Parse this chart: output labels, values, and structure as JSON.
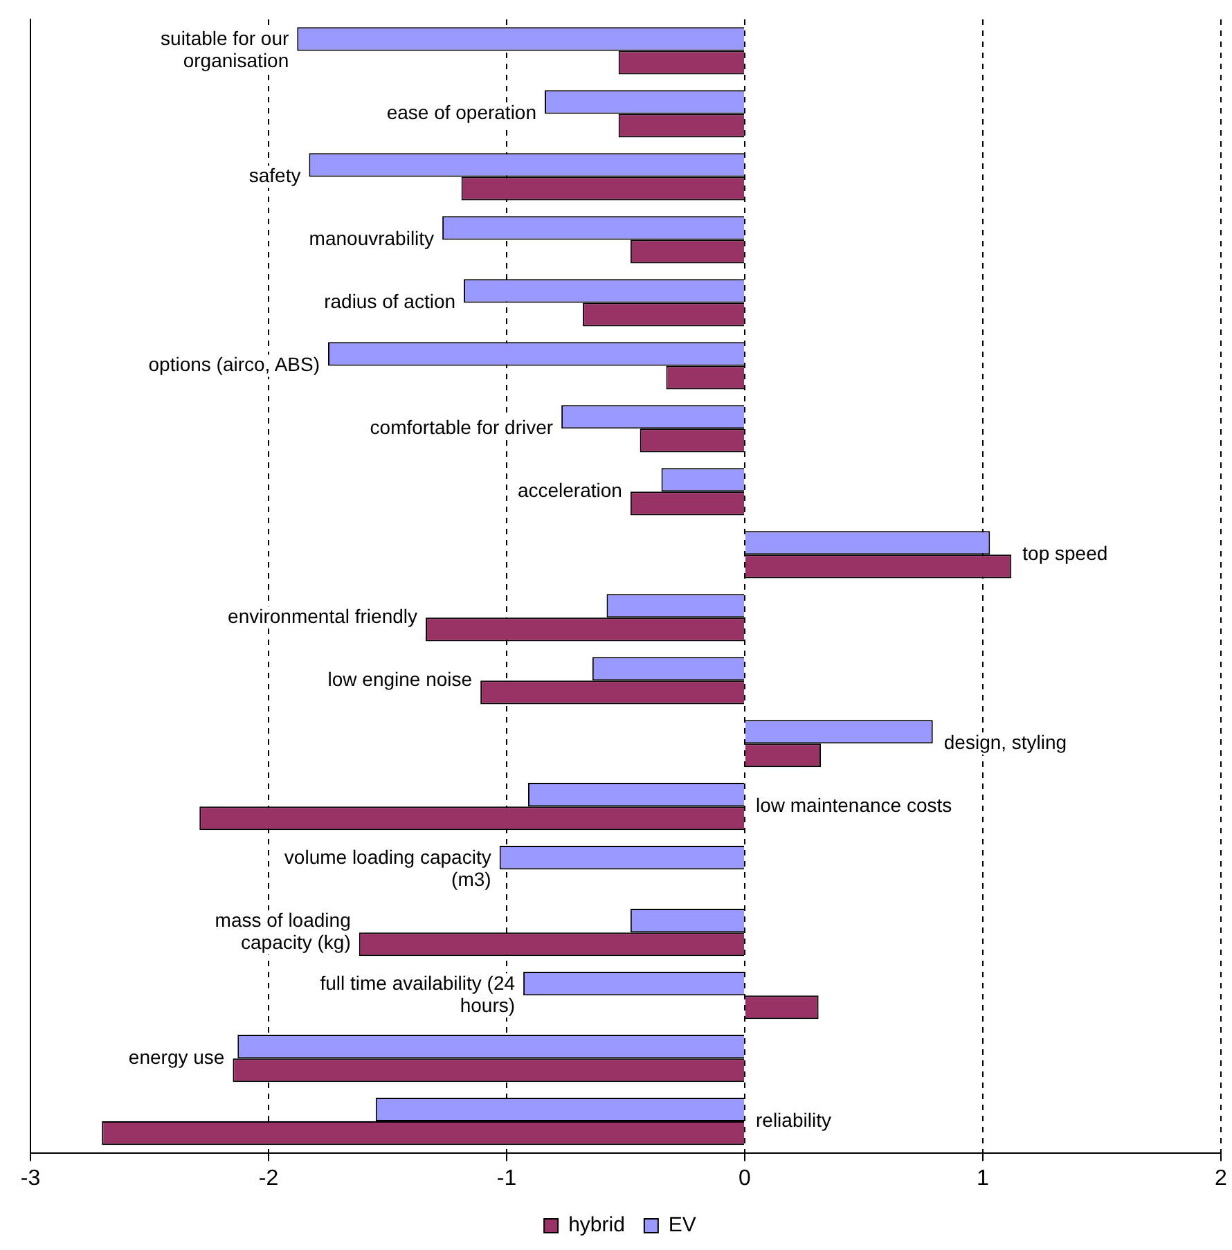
{
  "chart_data": {
    "type": "bar",
    "orientation": "horizontal",
    "categories": [
      "suitable for our organisation",
      "ease of operation",
      "safety",
      "manouvrability",
      "radius of action",
      "options (airco, ABS)",
      "comfortable for driver",
      "acceleration",
      "top speed",
      "environmental friendly",
      "low engine noise",
      "design, styling",
      "low maintenance costs",
      "volume loading capacity (m3)",
      "mass of loading capacity (kg)",
      "full time availability (24 hours)",
      "energy use",
      "reliability"
    ],
    "series": [
      {
        "name": "EV",
        "color": "#9999ff",
        "values": [
          -1.88,
          -0.84,
          -1.83,
          -1.27,
          -1.18,
          -1.75,
          -0.77,
          -0.35,
          1.03,
          -0.58,
          -0.64,
          0.79,
          -0.91,
          -1.03,
          -0.48,
          -0.93,
          -2.13,
          -1.55
        ]
      },
      {
        "name": "hybrid",
        "color": "#993366",
        "values": [
          -0.53,
          -0.53,
          -1.19,
          -0.48,
          -0.68,
          -0.33,
          -0.44,
          -0.48,
          1.12,
          -1.34,
          -1.11,
          0.32,
          -2.29,
          0,
          -1.62,
          0.31,
          -2.15,
          -2.7
        ]
      }
    ],
    "xlim": [
      -3,
      2
    ],
    "xticks": [
      -3,
      -2,
      -1,
      0,
      1,
      2
    ],
    "grid": "x",
    "legend": "bottom",
    "tick_labels": "x"
  }
}
